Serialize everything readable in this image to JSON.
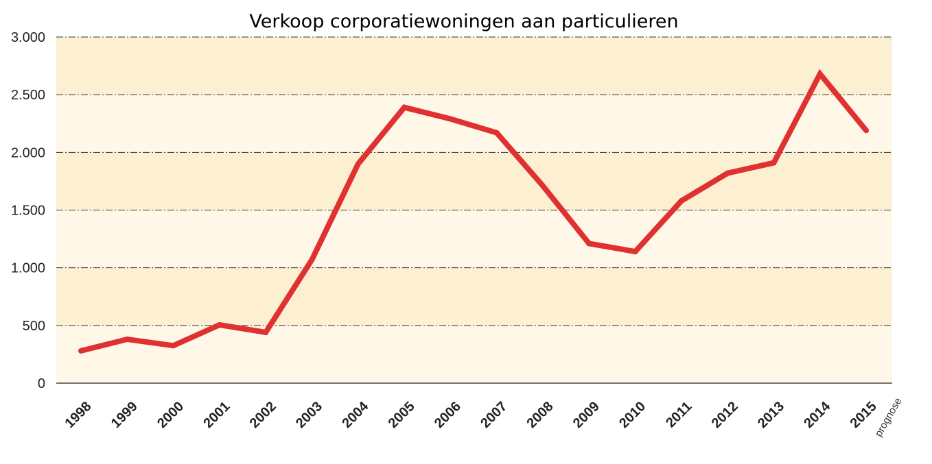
{
  "chart_data": {
    "type": "line",
    "title": "Verkoop corporatiewoningen aan particulieren",
    "xlabel": "",
    "ylabel": "",
    "categories": [
      "1998",
      "1999",
      "2000",
      "2001",
      "2002",
      "2003",
      "2004",
      "2005",
      "2006",
      "2007",
      "2008",
      "2009",
      "2010",
      "2011",
      "2012",
      "2013",
      "2014",
      "2015"
    ],
    "series": [
      {
        "values": [
          280,
          380,
          325,
          505,
          440,
          1070,
          1900,
          2390,
          2290,
          2170,
          1710,
          1210,
          1140,
          1580,
          1820,
          1910,
          2680,
          2190
        ]
      }
    ],
    "ylim": [
      0,
      3000
    ],
    "yticks": [
      0,
      500,
      1000,
      1500,
      2000,
      2500,
      3000
    ],
    "ytick_labels": [
      "0",
      "500",
      "1.000",
      "1.500",
      "2.000",
      "2.500",
      "3.000"
    ],
    "annotations": [
      {
        "category": "2015",
        "text": "prognose"
      }
    ],
    "grid": true,
    "legend": "none",
    "colors": {
      "line": "#e03131",
      "band_light": "#fff8e8",
      "band_dark": "#fdefd2",
      "grid": "#333333",
      "axis": "#444444"
    }
  }
}
